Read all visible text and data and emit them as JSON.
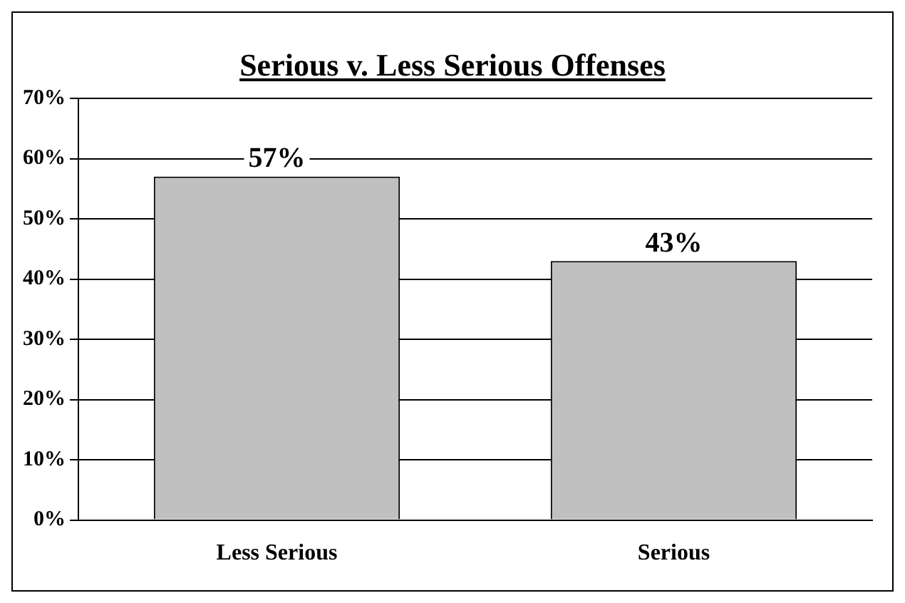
{
  "chart_data": {
    "type": "bar",
    "title": "Serious v. Less Serious Offenses",
    "categories": [
      "Less Serious",
      "Serious"
    ],
    "values": [
      57,
      43
    ],
    "value_labels": [
      "57%",
      "43%"
    ],
    "color": "#c0c0c0",
    "ylim": [
      0,
      70
    ],
    "yticks": [
      {
        "value": 0,
        "label": "0%"
      },
      {
        "value": 10,
        "label": "10%"
      },
      {
        "value": 20,
        "label": "20%"
      },
      {
        "value": 30,
        "label": "30%"
      },
      {
        "value": 40,
        "label": "40%"
      },
      {
        "value": 50,
        "label": "50%"
      },
      {
        "value": 60,
        "label": "60%"
      },
      {
        "value": 70,
        "label": "70%"
      }
    ],
    "grid": "y",
    "legend": false
  }
}
